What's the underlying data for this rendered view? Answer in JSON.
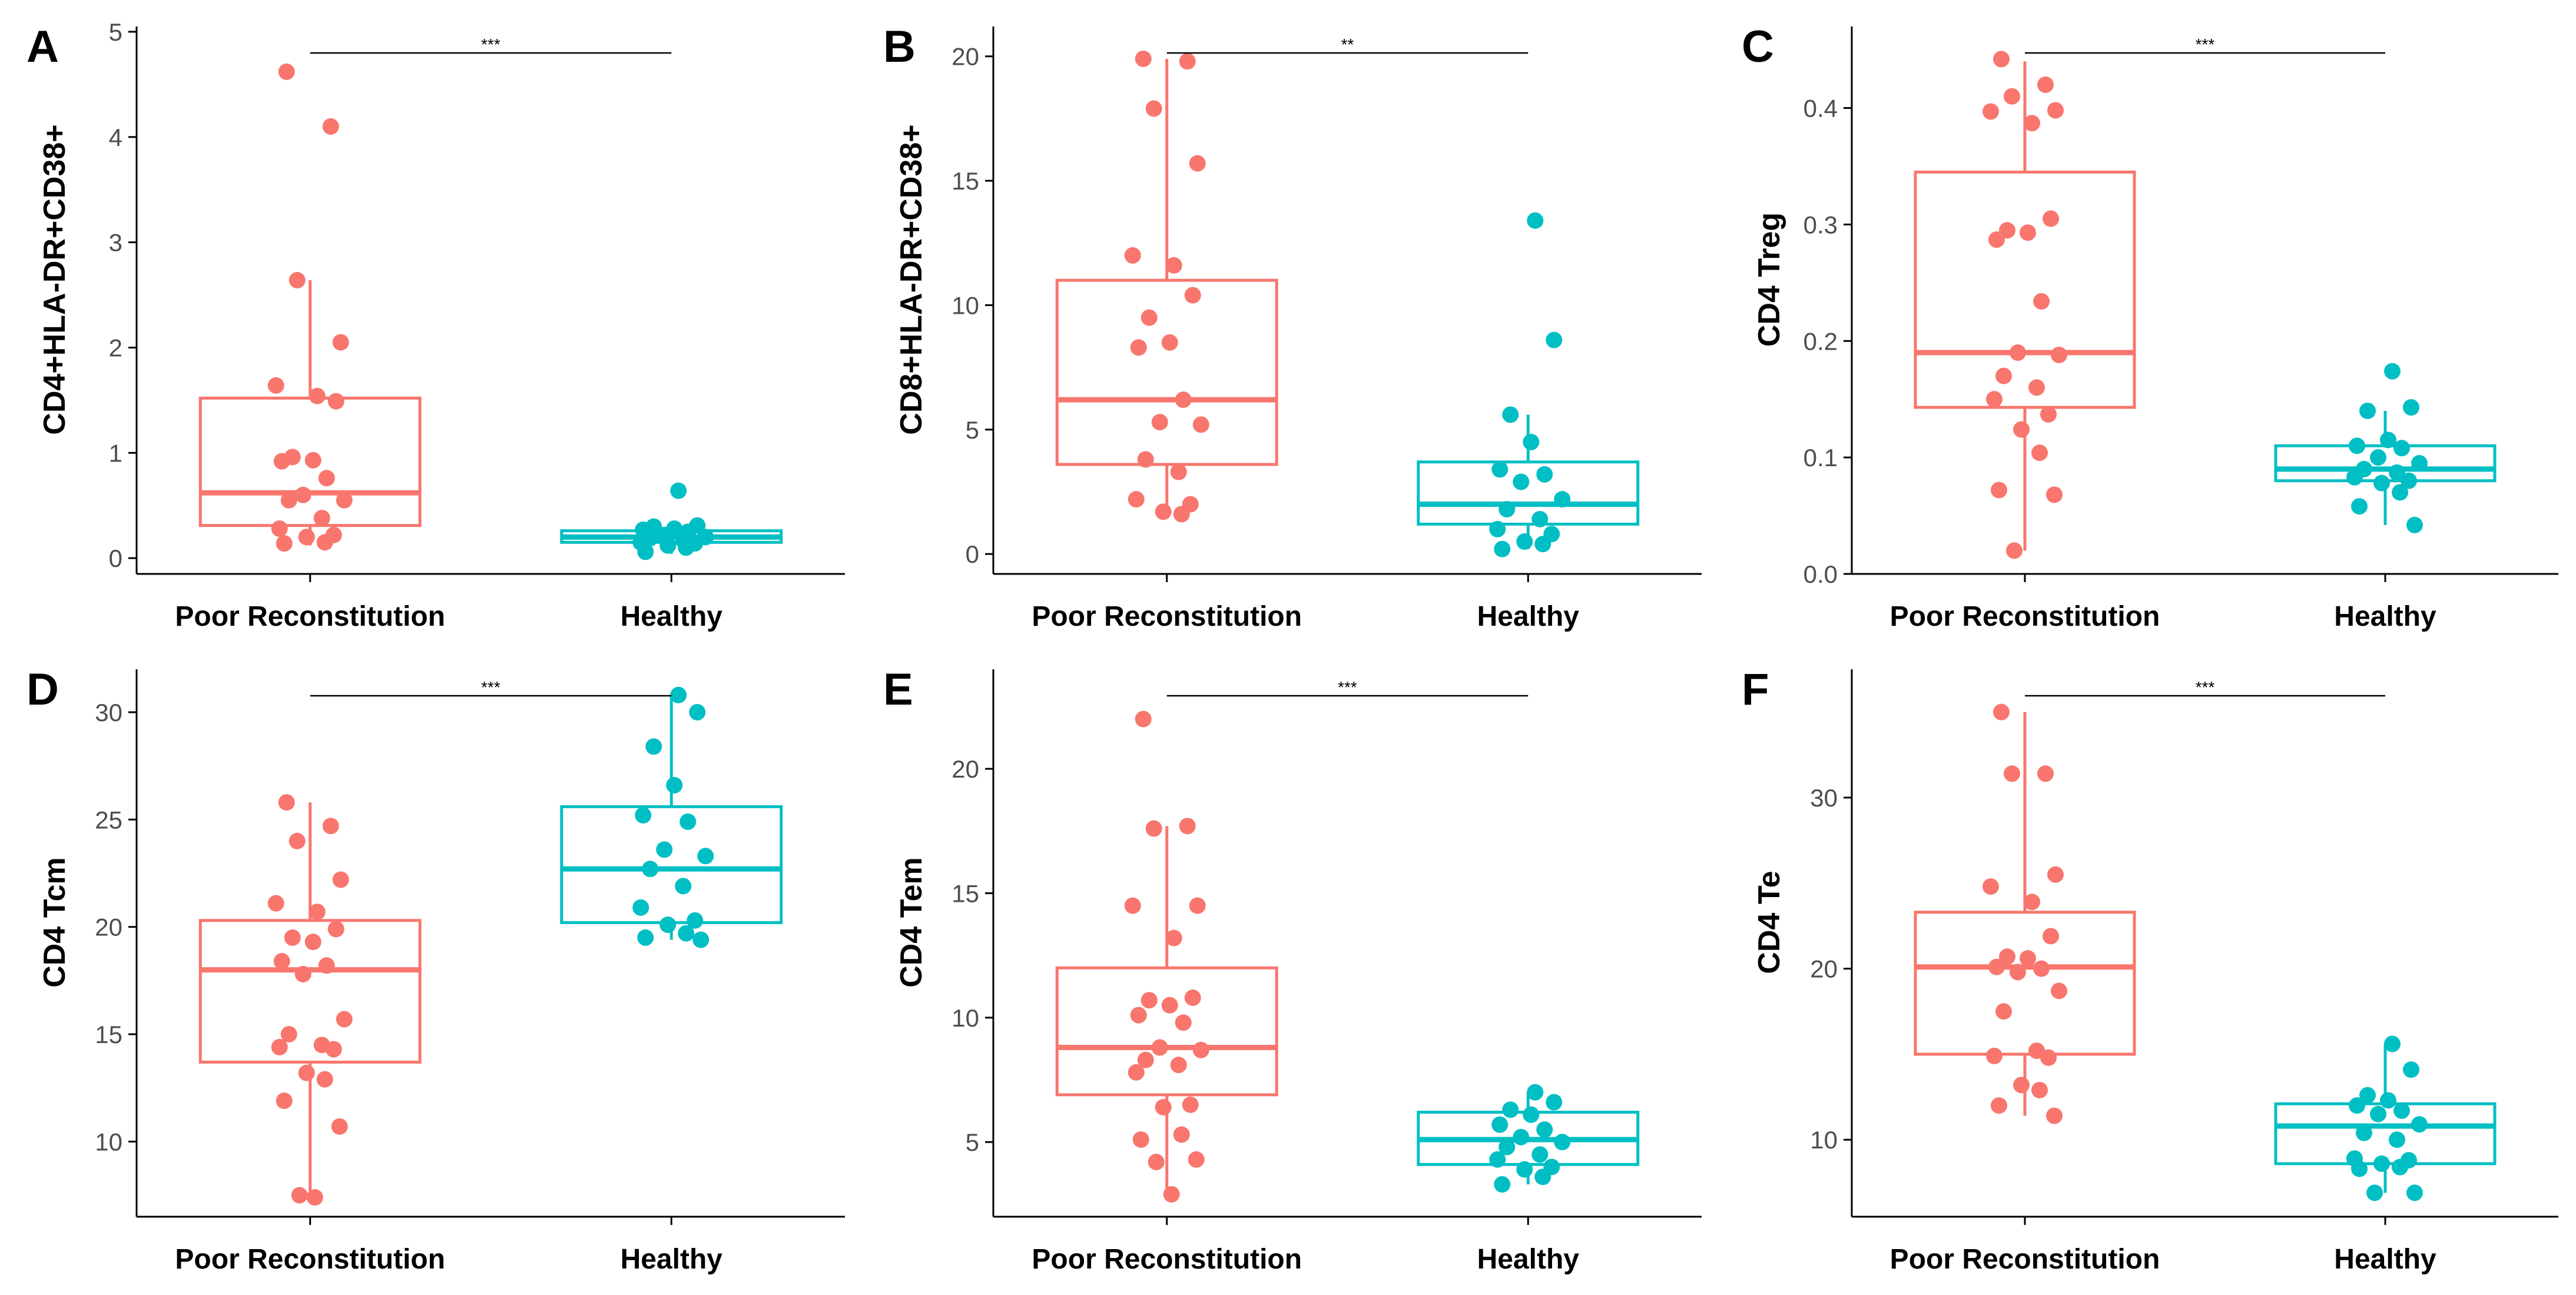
{
  "colors": {
    "poor": "#F8766D",
    "healthy": "#00BFC4",
    "axis": "#000000"
  },
  "chart_data": [
    {
      "panel": "A",
      "type": "box",
      "ylabel": "CD4+HLA-DR+CD38+",
      "categories": [
        "Poor Reconstitution",
        "Healthy"
      ],
      "ylim": [
        -0.15,
        5.05
      ],
      "yticks": [
        0,
        1,
        2,
        3,
        4,
        5
      ],
      "yticklabels": [
        "0",
        "1",
        "2",
        "3",
        "4",
        "5"
      ],
      "significance": "***",
      "groups": [
        {
          "name": "Poor Reconstitution",
          "min": 0.12,
          "q1": 0.31,
          "median": 0.62,
          "q3": 1.52,
          "max": 2.64,
          "points": [
            4.62,
            4.1,
            2.64,
            2.05,
            1.64,
            1.54,
            1.49,
            0.96,
            0.93,
            0.92,
            0.76,
            0.6,
            0.55,
            0.55,
            0.38,
            0.28,
            0.22,
            0.2,
            0.15,
            0.14
          ]
        },
        {
          "name": "Healthy",
          "min": 0.04,
          "q1": 0.15,
          "median": 0.2,
          "q3": 0.26,
          "max": 0.31,
          "points": [
            0.64,
            0.31,
            0.3,
            0.28,
            0.27,
            0.25,
            0.22,
            0.2,
            0.19,
            0.17,
            0.15,
            0.14,
            0.12,
            0.1,
            0.06
          ]
        }
      ]
    },
    {
      "panel": "B",
      "type": "box",
      "ylabel": "CD8+HLA-DR+CD38+",
      "categories": [
        "Poor Reconstitution",
        "Healthy"
      ],
      "ylim": [
        -0.8,
        21.2
      ],
      "yticks": [
        0,
        5,
        10,
        15,
        20
      ],
      "yticklabels": [
        "0",
        "5",
        "10",
        "15",
        "20"
      ],
      "significance": "**",
      "groups": [
        {
          "name": "Poor Reconstitution",
          "min": 1.5,
          "q1": 3.6,
          "median": 6.2,
          "q3": 11.0,
          "max": 19.9,
          "points": [
            19.9,
            19.8,
            17.9,
            15.7,
            12.0,
            11.6,
            10.4,
            9.5,
            8.5,
            8.3,
            6.2,
            5.3,
            5.2,
            3.8,
            3.3,
            2.2,
            2.0,
            1.7,
            1.6
          ]
        },
        {
          "name": "Healthy",
          "min": 0.2,
          "q1": 1.2,
          "median": 2.0,
          "q3": 3.7,
          "max": 5.6,
          "points": [
            13.4,
            8.6,
            5.6,
            4.5,
            3.4,
            3.2,
            2.9,
            2.2,
            1.8,
            1.4,
            1.0,
            0.8,
            0.5,
            0.4,
            0.2
          ]
        }
      ]
    },
    {
      "panel": "C",
      "type": "box",
      "ylabel": "CD4 Treg",
      "categories": [
        "Poor Reconstitution",
        "Healthy"
      ],
      "ylim": [
        0.0,
        0.47
      ],
      "yticks": [
        0.0,
        0.1,
        0.2,
        0.3,
        0.4
      ],
      "yticklabels": [
        "0.0",
        "0.1",
        "0.2",
        "0.3",
        "0.4"
      ],
      "significance": "***",
      "groups": [
        {
          "name": "Poor Reconstitution",
          "min": 0.02,
          "q1": 0.143,
          "median": 0.19,
          "q3": 0.345,
          "max": 0.44,
          "points": [
            0.442,
            0.42,
            0.41,
            0.398,
            0.397,
            0.387,
            0.305,
            0.295,
            0.293,
            0.287,
            0.234,
            0.19,
            0.188,
            0.17,
            0.16,
            0.15,
            0.137,
            0.124,
            0.104,
            0.072,
            0.068,
            0.02
          ]
        },
        {
          "name": "Healthy",
          "min": 0.042,
          "q1": 0.08,
          "median": 0.09,
          "q3": 0.11,
          "max": 0.14,
          "points": [
            0.174,
            0.143,
            0.14,
            0.115,
            0.11,
            0.108,
            0.1,
            0.095,
            0.09,
            0.087,
            0.083,
            0.08,
            0.078,
            0.07,
            0.058,
            0.042
          ]
        }
      ]
    },
    {
      "panel": "D",
      "type": "box",
      "ylabel": "CD4 Tcm",
      "categories": [
        "Poor Reconstitution",
        "Healthy"
      ],
      "ylim": [
        6.5,
        32.0
      ],
      "yticks": [
        10,
        15,
        20,
        25,
        30
      ],
      "yticklabels": [
        "10",
        "15",
        "20",
        "25",
        "30"
      ],
      "significance": "***",
      "groups": [
        {
          "name": "Poor Reconstitution",
          "min": 7.4,
          "q1": 13.7,
          "median": 18.0,
          "q3": 20.3,
          "max": 25.8,
          "points": [
            25.8,
            24.7,
            24.0,
            22.2,
            21.1,
            20.7,
            19.9,
            19.5,
            19.3,
            18.4,
            18.2,
            17.8,
            15.7,
            15.0,
            14.5,
            14.4,
            14.3,
            13.2,
            12.9,
            11.9,
            10.7,
            7.5,
            7.4
          ]
        },
        {
          "name": "Healthy",
          "min": 19.4,
          "q1": 20.2,
          "median": 22.7,
          "q3": 25.6,
          "max": 30.8,
          "points": [
            30.8,
            30.0,
            28.4,
            26.6,
            25.2,
            24.9,
            23.6,
            23.3,
            22.7,
            21.9,
            20.9,
            20.3,
            20.1,
            19.7,
            19.5,
            19.4
          ]
        }
      ]
    },
    {
      "panel": "E",
      "type": "box",
      "ylabel": "CD4 Tem",
      "categories": [
        "Poor Reconstitution",
        "Healthy"
      ],
      "ylim": [
        2.0,
        24.0
      ],
      "yticks": [
        5,
        10,
        15,
        20
      ],
      "yticklabels": [
        "5",
        "10",
        "15",
        "20"
      ],
      "significance": "***",
      "groups": [
        {
          "name": "Poor Reconstitution",
          "min": 2.9,
          "q1": 6.9,
          "median": 8.8,
          "q3": 12.0,
          "max": 17.7,
          "points": [
            22.0,
            17.7,
            17.6,
            14.5,
            14.5,
            13.2,
            10.8,
            10.7,
            10.5,
            10.1,
            9.8,
            8.8,
            8.7,
            8.3,
            8.1,
            7.8,
            6.5,
            6.4,
            5.3,
            5.1,
            4.3,
            4.2,
            2.9
          ]
        },
        {
          "name": "Healthy",
          "min": 3.3,
          "q1": 4.1,
          "median": 5.1,
          "q3": 6.2,
          "max": 7.0,
          "points": [
            7.0,
            6.6,
            6.3,
            6.1,
            5.7,
            5.5,
            5.2,
            5.0,
            4.8,
            4.5,
            4.3,
            4.0,
            3.9,
            3.6,
            3.3
          ]
        }
      ]
    },
    {
      "panel": "F",
      "type": "box",
      "ylabel": "CD4 Te",
      "categories": [
        "Poor Reconstitution",
        "Healthy"
      ],
      "ylim": [
        5.5,
        37.5
      ],
      "yticks": [
        10,
        20,
        30
      ],
      "yticklabels": [
        "10",
        "20",
        "30"
      ],
      "significance": "***",
      "groups": [
        {
          "name": "Poor Reconstitution",
          "min": 11.4,
          "q1": 15.0,
          "median": 20.1,
          "q3": 23.3,
          "max": 35.0,
          "points": [
            35.0,
            31.4,
            31.4,
            25.5,
            24.8,
            23.9,
            21.9,
            20.7,
            20.6,
            20.1,
            20.0,
            19.8,
            18.7,
            17.5,
            15.2,
            14.9,
            14.8,
            13.2,
            12.9,
            12.0,
            11.4
          ]
        },
        {
          "name": "Healthy",
          "min": 6.9,
          "q1": 8.6,
          "median": 10.8,
          "q3": 12.1,
          "max": 15.6,
          "points": [
            15.6,
            14.1,
            12.6,
            12.3,
            12.0,
            11.7,
            11.5,
            10.9,
            10.4,
            10.0,
            8.9,
            8.8,
            8.6,
            8.4,
            8.3,
            6.9,
            6.9
          ]
        }
      ]
    }
  ]
}
